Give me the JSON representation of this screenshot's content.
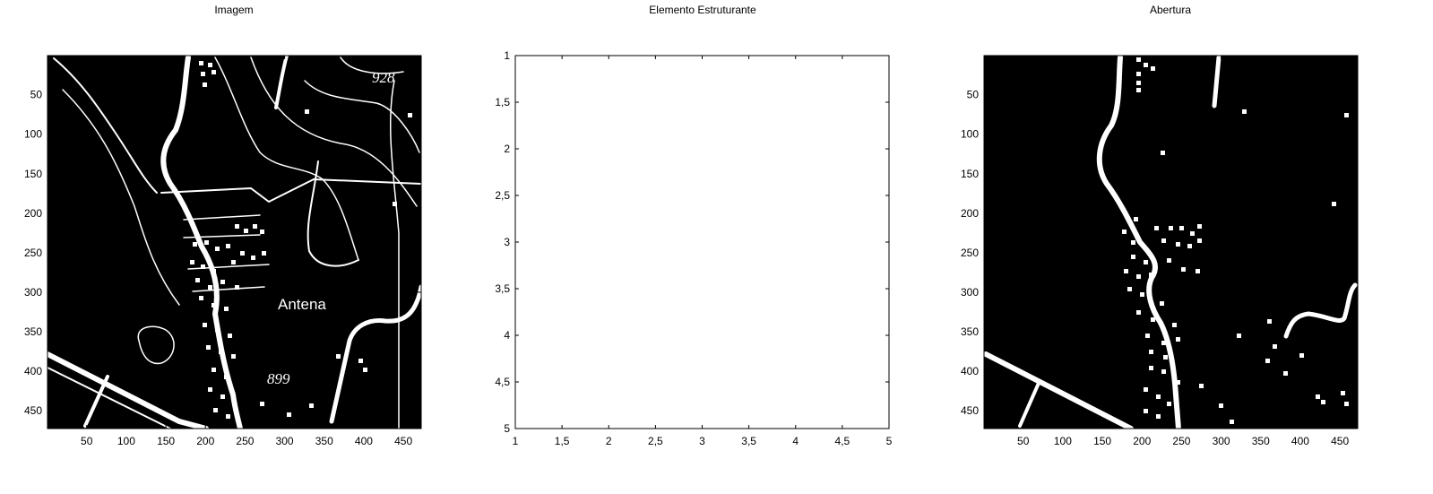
{
  "chart_data": [
    {
      "type": "image",
      "title": "Imagem",
      "xlim": [
        0.5,
        472.5
      ],
      "ylim": [
        0.5,
        472.5
      ],
      "y_reversed": true,
      "xticks": [
        50,
        100,
        150,
        200,
        250,
        300,
        350,
        400,
        450
      ],
      "yticks": [
        50,
        100,
        150,
        200,
        250,
        300,
        350,
        400,
        450
      ],
      "annotations": [
        "Antena",
        "928",
        "899"
      ],
      "colors": {
        "background": "#000000",
        "foreground": "#ffffff"
      }
    },
    {
      "type": "image",
      "title": "Elemento Estruturante",
      "xlim": [
        1,
        5
      ],
      "ylim": [
        1,
        5
      ],
      "y_reversed": true,
      "xticks": [
        "1",
        "1,5",
        "2",
        "2,5",
        "3",
        "3,5",
        "4",
        "4,5",
        "5"
      ],
      "yticks": [
        "1",
        "1,5",
        "2",
        "2,5",
        "3",
        "3,5",
        "4",
        "4,5",
        "5"
      ],
      "colors": {
        "background": "#ffffff"
      }
    },
    {
      "type": "image",
      "title": "Abertura",
      "xlim": [
        0.5,
        472.5
      ],
      "ylim": [
        0.5,
        472.5
      ],
      "y_reversed": true,
      "xticks": [
        50,
        100,
        150,
        200,
        250,
        300,
        350,
        400,
        450
      ],
      "yticks": [
        50,
        100,
        150,
        200,
        250,
        300,
        350,
        400,
        450
      ],
      "colors": {
        "background": "#000000",
        "foreground": "#ffffff"
      }
    }
  ]
}
